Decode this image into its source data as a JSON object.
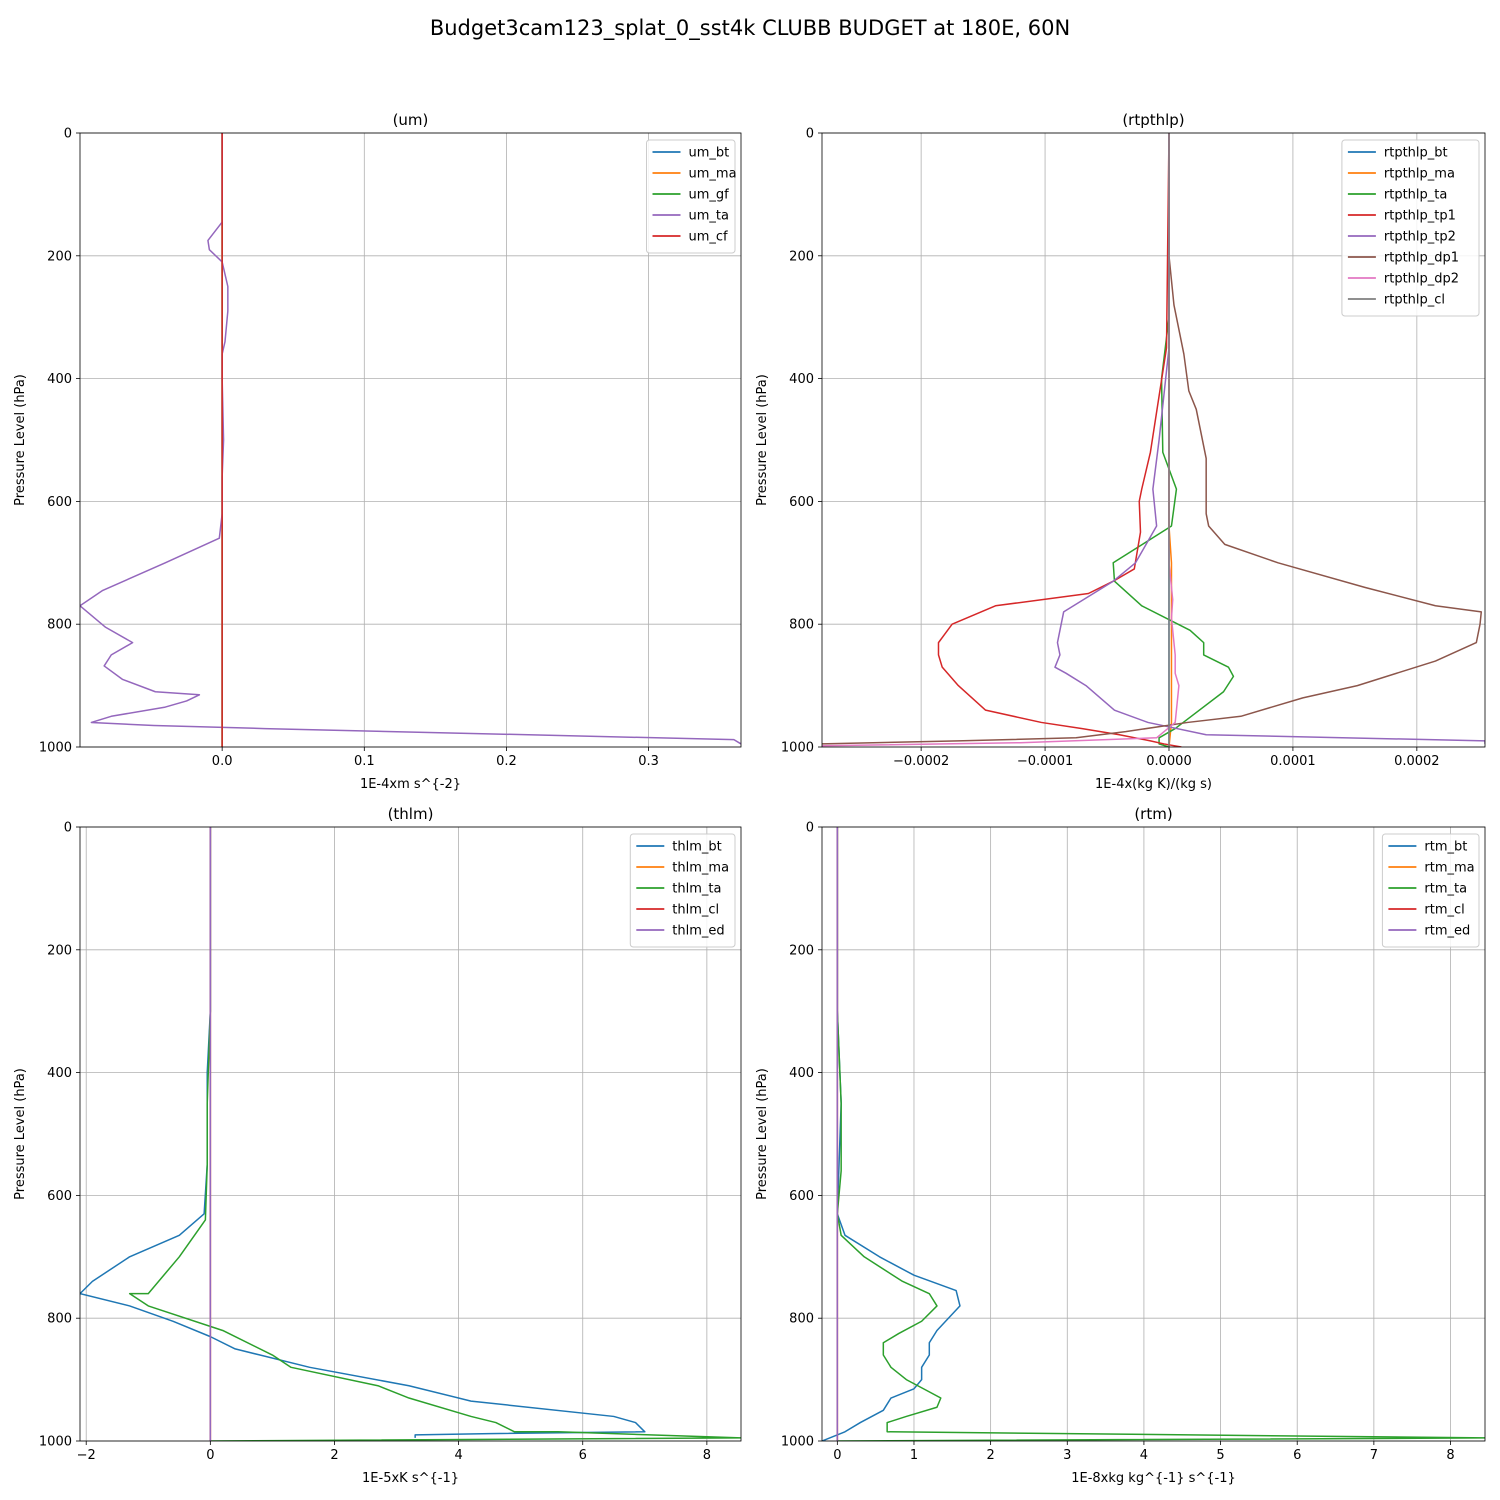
{
  "suptitle": "Budget3cam123_splat_0_sst4k CLUBB BUDGET at 180E, 60N",
  "chart_data": [
    {
      "type": "line",
      "title": "(um)",
      "xlabel": "1E-4xm s^{-2}",
      "ylabel": "Pressure Level (hPa)",
      "xlim": [
        -0.1,
        0.365
      ],
      "ylim": [
        1000,
        0
      ],
      "xticks": [
        0.0,
        0.1,
        0.2,
        0.3
      ],
      "xtick_labels": [
        "0.0",
        "0.1",
        "0.2",
        "0.3"
      ],
      "yticks": [
        0,
        200,
        400,
        600,
        800,
        1000
      ],
      "ytick_labels": [
        "0",
        "200",
        "400",
        "600",
        "800",
        "1000"
      ],
      "grid": true,
      "legend": "upper right",
      "series": [
        {
          "name": "um_bt",
          "color": "#1f77b4",
          "x": [
            0,
            0
          ],
          "y": [
            0,
            1000
          ]
        },
        {
          "name": "um_ma",
          "color": "#ff7f0e",
          "x": [
            0,
            0
          ],
          "y": [
            0,
            1000
          ]
        },
        {
          "name": "um_gf",
          "color": "#2ca02c",
          "x": [
            0,
            0
          ],
          "y": [
            0,
            1000
          ]
        },
        {
          "name": "um_ta",
          "color": "#9467bd",
          "x": [
            0,
            0,
            0,
            -0.01,
            -0.009,
            0,
            0.002,
            0.004,
            0.004,
            0.002,
            0,
            0,
            0.001,
            0,
            0,
            -0.002,
            -0.04,
            -0.084,
            -0.1,
            -0.082,
            -0.063,
            -0.078,
            -0.083,
            -0.07,
            -0.047,
            -0.016,
            -0.025,
            -0.04,
            -0.078,
            -0.092,
            -0.048,
            0.03,
            0.36,
            0.365
          ],
          "y": [
            0,
            100,
            145,
            175,
            190,
            210,
            230,
            250,
            290,
            340,
            360,
            400,
            500,
            560,
            620,
            660,
            700,
            745,
            770,
            805,
            830,
            850,
            868,
            890,
            910,
            915,
            925,
            935,
            950,
            960,
            965,
            970,
            988,
            995
          ]
        },
        {
          "name": "um_cf",
          "color": "#d62728",
          "x": [
            0,
            0
          ],
          "y": [
            0,
            1000
          ]
        }
      ]
    },
    {
      "type": "line",
      "title": "(rtpthlp)",
      "xlabel": "1E-4x(kg K)/(kg s)",
      "ylabel": "Pressure Level (hPa)",
      "xlim": [
        -0.00028,
        0.000255
      ],
      "ylim": [
        1000,
        0
      ],
      "xticks": [
        -0.0002,
        -0.0001,
        0.0,
        0.0001,
        0.0002
      ],
      "xtick_labels": [
        "−0.0002",
        "−0.0001",
        "0.0000",
        "0.0001",
        "0.0002"
      ],
      "yticks": [
        0,
        200,
        400,
        600,
        800,
        1000
      ],
      "ytick_labels": [
        "0",
        "200",
        "400",
        "600",
        "800",
        "1000"
      ],
      "grid": true,
      "legend": "upper right",
      "series": [
        {
          "name": "rtpthlp_bt",
          "color": "#1f77b4",
          "x": [
            0,
            0
          ],
          "y": [
            0,
            1000
          ]
        },
        {
          "name": "rtpthlp_ma",
          "color": "#ff7f0e",
          "x": [
            0,
            0,
            2e-06,
            2e-06,
            0
          ],
          "y": [
            0,
            640,
            700,
            960,
            1000
          ]
        },
        {
          "name": "rtpthlp_ta",
          "color": "#2ca02c",
          "x": [
            0,
            0,
            -3e-06,
            -6e-06,
            -5e-06,
            6e-06,
            2e-06,
            -4.5e-05,
            -4.4e-05,
            -2.2e-05,
            1.7e-05,
            2.8e-05,
            2.8e-05,
            4.8e-05,
            5.2e-05,
            4.4e-05,
            1.8e-05,
            5e-06,
            -8e-06,
            -8e-06,
            0
          ],
          "y": [
            0,
            300,
            350,
            400,
            520,
            580,
            640,
            700,
            730,
            770,
            810,
            830,
            850,
            870,
            885,
            910,
            950,
            970,
            985,
            995,
            1000
          ]
        },
        {
          "name": "rtpthlp_tp1",
          "color": "#d62728",
          "x": [
            0,
            -2e-06,
            -1.5e-05,
            -2.2e-05,
            -2.4e-05,
            -2.3e-05,
            -2.8e-05,
            -4.5e-05,
            -6.5e-05,
            -0.00014,
            -0.000175,
            -0.000186,
            -0.000186,
            -0.000183,
            -0.00017,
            -0.000148,
            -0.000103,
            -7e-05,
            -4e-05,
            -1.5e-05,
            -4e-06,
            1e-05
          ],
          "y": [
            0,
            350,
            520,
            580,
            600,
            650,
            710,
            730,
            750,
            770,
            800,
            830,
            850,
            870,
            900,
            940,
            960,
            970,
            980,
            990,
            995,
            1000
          ]
        },
        {
          "name": "rtpthlp_tp2",
          "color": "#9467bd",
          "x": [
            0,
            0,
            -8e-06,
            -1.3e-05,
            -1e-05,
            -2.7e-05,
            -4.5e-05,
            -8.5e-05,
            -9e-05,
            -8.8e-05,
            -9.2e-05,
            -8.3e-05,
            -6.7e-05,
            -4.4e-05,
            -1.7e-05,
            3e-05,
            0.000255,
            0.000255
          ],
          "y": [
            0,
            350,
            500,
            580,
            640,
            700,
            730,
            780,
            830,
            850,
            870,
            880,
            900,
            940,
            960,
            980,
            990,
            995
          ]
        },
        {
          "name": "rtpthlp_dp1",
          "color": "#8c564b",
          "x": [
            0,
            0,
            4e-06,
            1.2e-05,
            1.6e-05,
            2.2e-05,
            3e-05,
            3e-05,
            3e-05,
            3.2e-05,
            4.5e-05,
            8.8e-05,
            0.000158,
            0.000215,
            0.000252,
            0.000251,
            0.000248,
            0.000215,
            0.000152,
            0.000108,
            5.8e-05,
            1.5e-05,
            -3.5e-05,
            -7.5e-05,
            -0.00017,
            -0.00028
          ],
          "y": [
            0,
            200,
            280,
            360,
            420,
            450,
            530,
            580,
            620,
            640,
            670,
            700,
            740,
            770,
            780,
            800,
            830,
            860,
            900,
            920,
            950,
            960,
            975,
            985,
            990,
            995
          ]
        },
        {
          "name": "rtpthlp_dp2",
          "color": "#e377c2",
          "x": [
            0,
            0,
            3e-06,
            2e-06,
            5e-06,
            5e-06,
            8e-06,
            5e-06,
            -1e-05,
            -0.00012,
            -0.00028
          ],
          "y": [
            0,
            700,
            760,
            790,
            850,
            880,
            900,
            960,
            985,
            993,
            998
          ]
        },
        {
          "name": "rtpthlp_cl",
          "color": "#7f7f7f",
          "x": [
            0,
            0
          ],
          "y": [
            0,
            1000
          ]
        }
      ]
    },
    {
      "type": "line",
      "title": "(thlm)",
      "xlabel": "1E-5xK s^{-1}",
      "ylabel": "Pressure Level (hPa)",
      "xlim": [
        -2.1,
        8.55
      ],
      "ylim": [
        1000,
        0
      ],
      "xticks": [
        -2,
        0,
        2,
        4,
        6,
        8
      ],
      "xtick_labels": [
        "−2",
        "0",
        "2",
        "4",
        "6",
        "8"
      ],
      "yticks": [
        0,
        200,
        400,
        600,
        800,
        1000
      ],
      "ytick_labels": [
        "0",
        "200",
        "400",
        "600",
        "800",
        "1000"
      ],
      "grid": true,
      "legend": "upper right",
      "series": [
        {
          "name": "thlm_bt",
          "color": "#1f77b4",
          "x": [
            0,
            0,
            -0.05,
            -0.05,
            -0.1,
            -0.5,
            -1.3,
            -1.9,
            -2.1,
            -1.3,
            -0.6,
            0,
            0.4,
            0.8,
            1.6,
            3.2,
            4.2,
            6.5,
            6.85,
            7.0,
            4.5,
            3.3,
            3.3
          ],
          "y": [
            0,
            300,
            400,
            550,
            630,
            665,
            700,
            740,
            760,
            780,
            805,
            830,
            850,
            860,
            880,
            910,
            935,
            960,
            970,
            985,
            988,
            990,
            995
          ]
        },
        {
          "name": "thlm_ma",
          "color": "#ff7f0e",
          "x": [
            0,
            0
          ],
          "y": [
            0,
            1000
          ]
        },
        {
          "name": "thlm_ta",
          "color": "#2ca02c",
          "x": [
            0,
            0,
            -0.05,
            -0.05,
            -0.08,
            -0.5,
            -1.0,
            -1.3,
            -1.0,
            0.2,
            1.0,
            1.3,
            2.7,
            3.2,
            4.2,
            4.6,
            4.9,
            5.6,
            8.55,
            0
          ],
          "y": [
            0,
            300,
            450,
            550,
            640,
            700,
            760,
            760,
            780,
            820,
            860,
            880,
            910,
            930,
            960,
            970,
            985,
            985,
            995,
            1000
          ]
        },
        {
          "name": "thlm_cl",
          "color": "#d62728",
          "x": [
            0,
            0
          ],
          "y": [
            0,
            1000
          ]
        },
        {
          "name": "thlm_ed",
          "color": "#9467bd",
          "x": [
            0,
            0
          ],
          "y": [
            0,
            1000
          ]
        }
      ]
    },
    {
      "type": "line",
      "title": "(rtm)",
      "xlabel": "1E-8xkg kg^{-1} s^{-1}",
      "ylabel": "Pressure Level (hPa)",
      "xlim": [
        -0.2,
        8.45
      ],
      "ylim": [
        1000,
        0
      ],
      "xticks": [
        0,
        1,
        2,
        3,
        4,
        5,
        6,
        7,
        8
      ],
      "xtick_labels": [
        "0",
        "1",
        "2",
        "3",
        "4",
        "5",
        "6",
        "7",
        "8"
      ],
      "yticks": [
        0,
        200,
        400,
        600,
        800,
        1000
      ],
      "ytick_labels": [
        "0",
        "200",
        "400",
        "600",
        "800",
        "1000"
      ],
      "grid": true,
      "legend": "upper right",
      "series": [
        {
          "name": "rtm_bt",
          "color": "#1f77b4",
          "x": [
            0,
            0,
            0.05,
            0,
            0.1,
            0.55,
            1.0,
            1.55,
            1.6,
            1.3,
            1.2,
            1.2,
            1.1,
            1.1,
            1.0,
            0.7,
            0.6,
            0.3,
            0.1,
            -0.2
          ],
          "y": [
            0,
            300,
            450,
            630,
            665,
            700,
            730,
            755,
            780,
            820,
            840,
            860,
            880,
            900,
            915,
            930,
            950,
            970,
            985,
            1000
          ]
        },
        {
          "name": "rtm_ma",
          "color": "#ff7f0e",
          "x": [
            0,
            0
          ],
          "y": [
            0,
            1000
          ]
        },
        {
          "name": "rtm_ta",
          "color": "#2ca02c",
          "x": [
            0,
            0,
            0.05,
            0.05,
            0,
            0.05,
            0.35,
            0.85,
            1.2,
            1.3,
            1.1,
            0.8,
            0.6,
            0.6,
            0.7,
            0.9,
            1.2,
            1.35,
            1.3,
            0.9,
            0.65,
            0.65,
            8.45,
            0
          ],
          "y": [
            0,
            300,
            450,
            560,
            630,
            665,
            700,
            740,
            760,
            780,
            805,
            825,
            840,
            860,
            880,
            900,
            920,
            930,
            945,
            960,
            970,
            985,
            995,
            1000
          ]
        },
        {
          "name": "rtm_cl",
          "color": "#d62728",
          "x": [
            0,
            0
          ],
          "y": [
            0,
            1000
          ]
        },
        {
          "name": "rtm_ed",
          "color": "#9467bd",
          "x": [
            0,
            0
          ],
          "y": [
            0,
            1000
          ]
        }
      ]
    }
  ]
}
